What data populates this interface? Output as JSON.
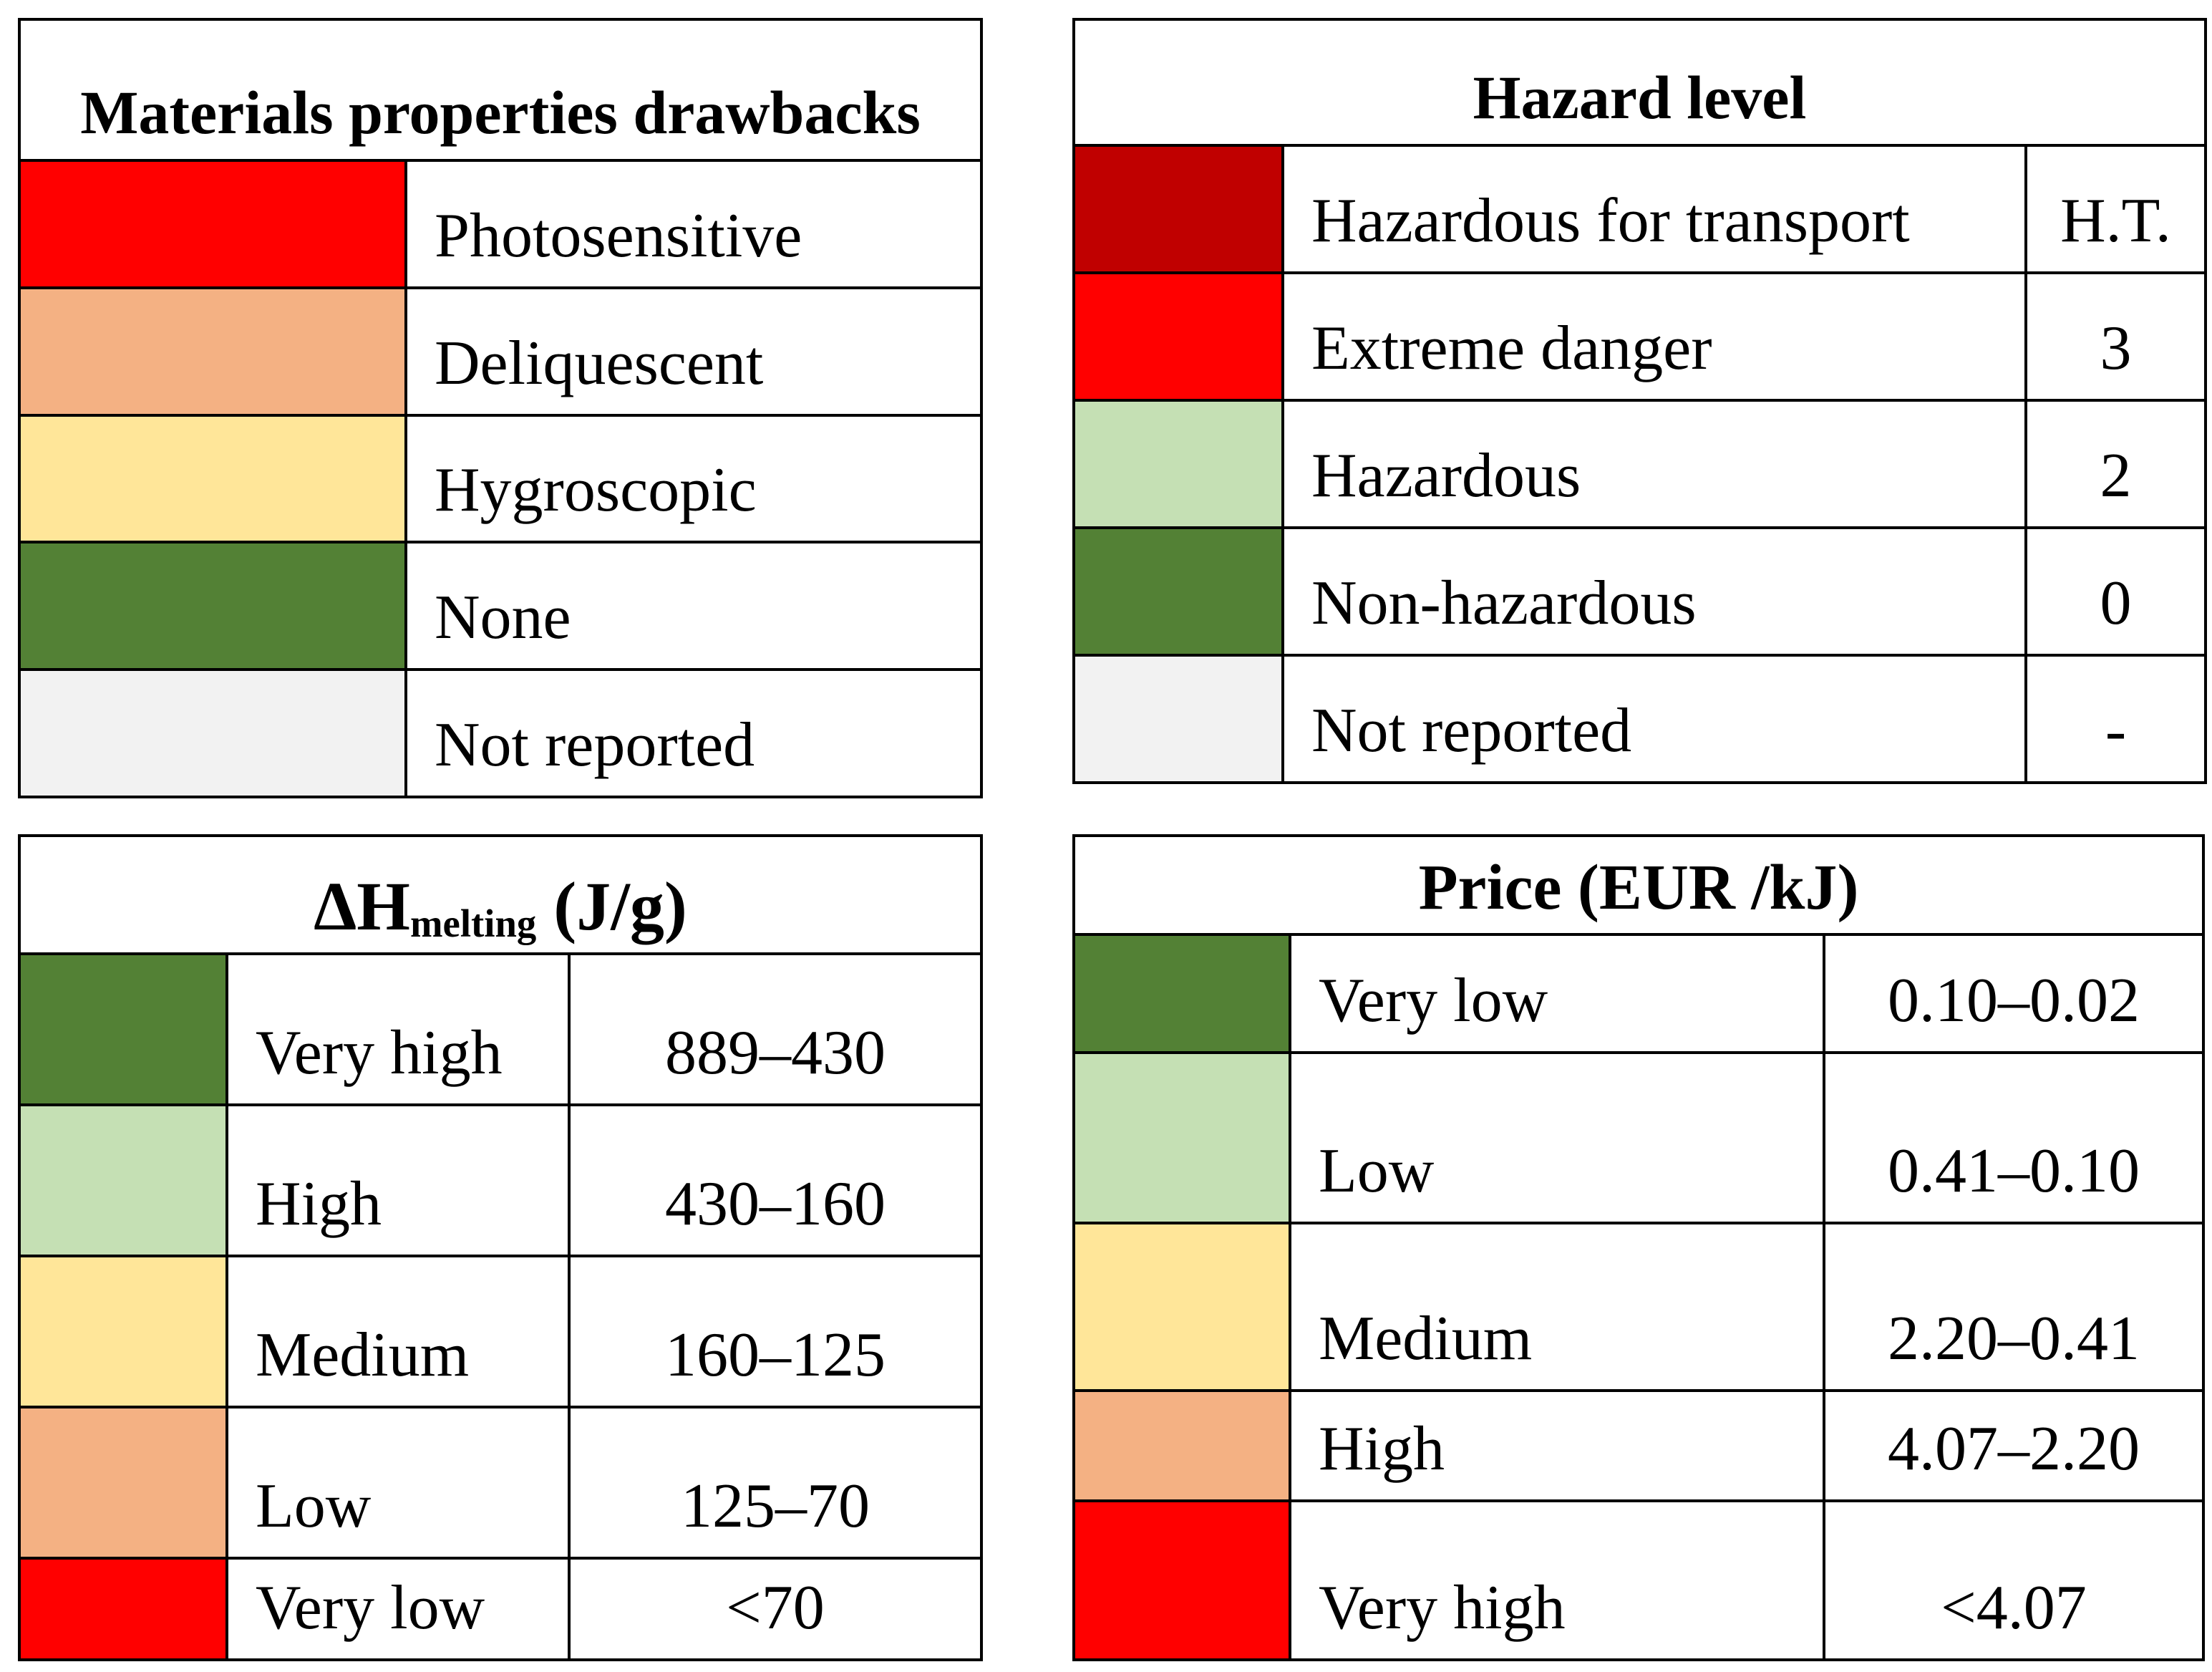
{
  "page": {
    "background": "#FFFFFF",
    "grid_line_color": "#000000"
  },
  "palette": {
    "red": "#FF0000",
    "dark_red": "#C00000",
    "orange": "#F4B183",
    "yellow": "#FFE699",
    "dark_green": "#538135",
    "light_green": "#C5E0B4",
    "light_gray": "#F2F2F2"
  },
  "tables": [
    {
      "id": "materials-properties-drawbacks",
      "title": "Materials properties drawbacks",
      "rows": [
        {
          "color": "#FF0000",
          "color_name": "red",
          "label": "Photosensitive"
        },
        {
          "color": "#F4B183",
          "color_name": "orange",
          "label": "Deliquescent"
        },
        {
          "color": "#FFE699",
          "color_name": "yellow",
          "label": "Hygroscopic"
        },
        {
          "color": "#538135",
          "color_name": "dark-green",
          "label": "None"
        },
        {
          "color": "#F2F2F2",
          "color_name": "light-gray",
          "label": "Not reported"
        }
      ]
    },
    {
      "id": "hazard-level",
      "title": "Hazard level",
      "rows": [
        {
          "color": "#C00000",
          "color_name": "dark-red",
          "label": "Hazardous for transport",
          "value": "H.T."
        },
        {
          "color": "#FF0000",
          "color_name": "red",
          "label": "Extreme danger",
          "value": "3"
        },
        {
          "color": "#C5E0B4",
          "color_name": "light-green",
          "label": "Hazardous",
          "value": "2"
        },
        {
          "color": "#538135",
          "color_name": "dark-green",
          "label": "Non-hazardous",
          "value": "0"
        },
        {
          "color": "#F2F2F2",
          "color_name": "light-gray",
          "label": "Not reported",
          "value": "-"
        }
      ]
    },
    {
      "id": "melting-enthalpy",
      "title_prefix": "ΔH",
      "title_subscript": "melting",
      "title_suffix": " (J/g)",
      "rows": [
        {
          "color": "#538135",
          "color_name": "dark-green",
          "label": "Very high",
          "value": "889–430"
        },
        {
          "color": "#C5E0B4",
          "color_name": "light-green",
          "label": "High",
          "value": "430–160"
        },
        {
          "color": "#FFE699",
          "color_name": "yellow",
          "label": "Medium",
          "value": "160–125"
        },
        {
          "color": "#F4B183",
          "color_name": "orange",
          "label": "Low",
          "value": "125–70"
        },
        {
          "color": "#FF0000",
          "color_name": "red",
          "label": "Very low",
          "value": "<70"
        }
      ]
    },
    {
      "id": "price",
      "title": "Price (EUR /kJ)",
      "rows": [
        {
          "color": "#538135",
          "color_name": "dark-green",
          "label": "Very low",
          "value": "0.10–0.02"
        },
        {
          "color": "#C5E0B4",
          "color_name": "light-green",
          "label": "Low",
          "value": "0.41–0.10"
        },
        {
          "color": "#FFE699",
          "color_name": "yellow",
          "label": "Medium",
          "value": "2.20–0.41"
        },
        {
          "color": "#F4B183",
          "color_name": "orange",
          "label": "High",
          "value": "4.07–2.20"
        },
        {
          "color": "#FF0000",
          "color_name": "red",
          "label": "Very high",
          "value": "<4.07"
        }
      ]
    }
  ]
}
